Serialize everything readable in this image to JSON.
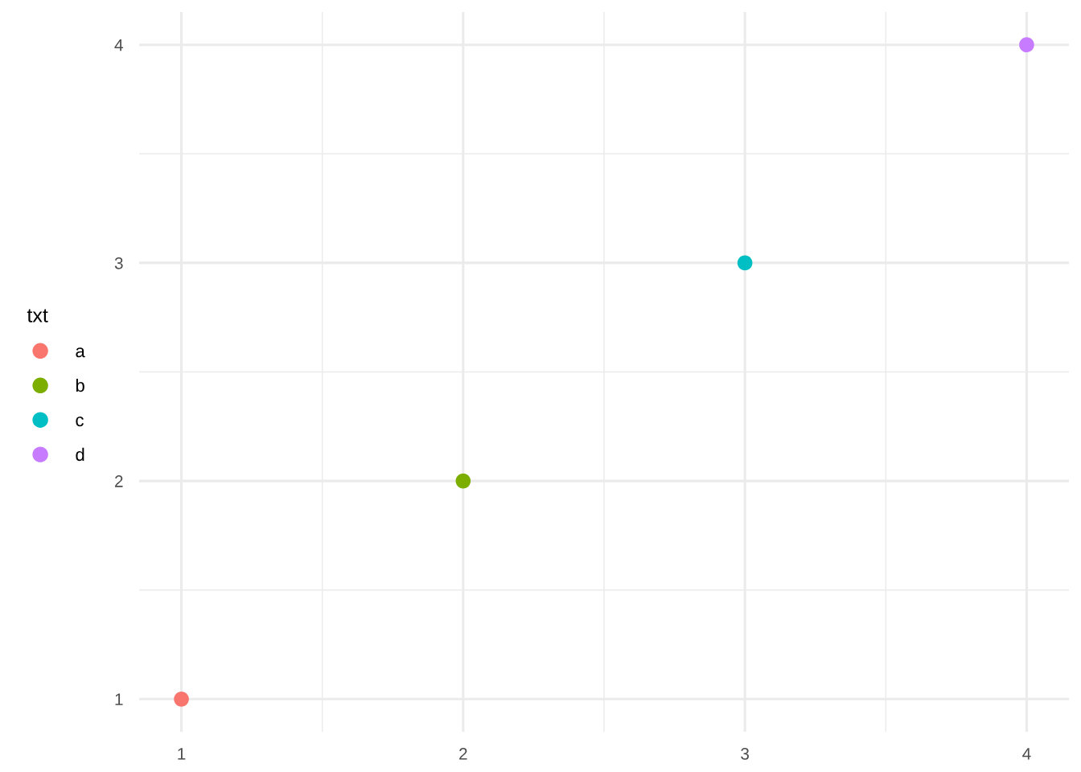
{
  "chart_data": {
    "type": "scatter",
    "legend_title": "txt",
    "legend": "left",
    "grid": true,
    "marker": "circle",
    "xlim": [
      0.85,
      4.15
    ],
    "ylim": [
      0.85,
      4.15
    ],
    "xticks": [
      1,
      {
        "value": 1.5,
        "label": null
      },
      2,
      {
        "value": 2.5,
        "label": null
      },
      3,
      {
        "value": 3.5,
        "label": null
      },
      4
    ],
    "yticks": [
      1,
      {
        "value": 1.5,
        "label": null
      },
      2,
      {
        "value": 2.5,
        "label": null
      },
      3,
      {
        "value": 3.5,
        "label": null
      },
      4
    ],
    "series": [
      {
        "name": "a",
        "color": "#f8766d",
        "x": [
          1
        ],
        "values": [
          1
        ]
      },
      {
        "name": "b",
        "color": "#7cae00",
        "x": [
          2
        ],
        "values": [
          2
        ]
      },
      {
        "name": "c",
        "color": "#00bfc4",
        "x": [
          3
        ],
        "values": [
          3
        ]
      },
      {
        "name": "d",
        "color": "#c77cff",
        "x": [
          4
        ],
        "values": [
          4
        ]
      }
    ]
  }
}
